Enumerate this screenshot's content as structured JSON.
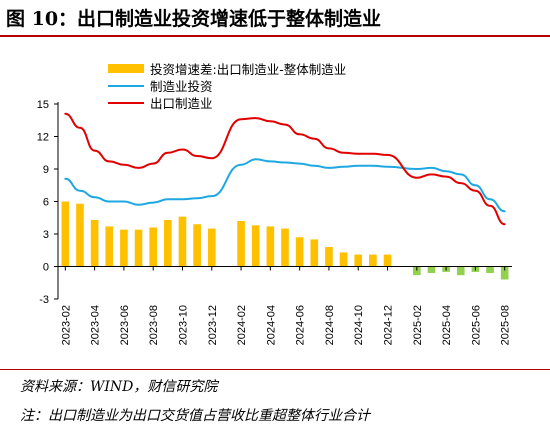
{
  "title": "图 10：出口制造业投资增速低于整体制造业",
  "source": "资料来源：WIND，财信研究院",
  "footnote": "注：出口制造业为出口交货值占营收比重超整体行业合计",
  "colors": {
    "bar_positive": "#ffc000",
    "bar_negative": "#92d050",
    "line_total": "#1ea7e1",
    "line_export": "#e00000",
    "rule": "#b30000"
  },
  "chart_data": {
    "type": "bar",
    "x": [
      "2023-02",
      "2023-03",
      "2023-04",
      "2023-05",
      "2023-06",
      "2023-07",
      "2023-08",
      "2023-09",
      "2023-10",
      "2023-11",
      "2023-12",
      "2024-01",
      "2024-02",
      "2024-03",
      "2024-04",
      "2024-05",
      "2024-06",
      "2024-07",
      "2024-08",
      "2024-09",
      "2024-10",
      "2024-11",
      "2024-12",
      "2025-01",
      "2025-02",
      "2025-03",
      "2025-04",
      "2025-05",
      "2025-06",
      "2025-07",
      "2025-08"
    ],
    "tick_labels": [
      "2023-02",
      "2023-04",
      "2023-06",
      "2023-08",
      "2023-10",
      "2023-12",
      "2024-02",
      "2024-04",
      "2024-06",
      "2024-08",
      "2024-10",
      "2024-12",
      "2025-02",
      "2025-04",
      "2025-06",
      "2025-08"
    ],
    "yticks": [
      -3,
      0,
      3,
      6,
      9,
      12,
      15
    ],
    "ylim": [
      -3,
      15
    ],
    "legend_position": "top-left",
    "grid": false,
    "series": [
      {
        "name": "投资增速差:出口制造业-整体制造业",
        "type": "bar",
        "values": [
          6.0,
          5.8,
          4.3,
          3.7,
          3.4,
          3.4,
          3.6,
          4.3,
          4.6,
          3.9,
          3.5,
          null,
          4.2,
          3.8,
          3.7,
          3.5,
          2.7,
          2.5,
          1.8,
          1.3,
          1.1,
          1.1,
          1.1,
          null,
          -0.8,
          -0.6,
          -0.5,
          -0.8,
          -0.5,
          -0.6,
          -1.2
        ]
      },
      {
        "name": "制造业投资",
        "type": "line",
        "values": [
          8.1,
          7.0,
          6.4,
          6.0,
          6.0,
          5.7,
          5.9,
          6.2,
          6.2,
          6.3,
          6.5,
          null,
          9.4,
          9.9,
          9.7,
          9.6,
          9.5,
          9.3,
          9.1,
          9.2,
          9.3,
          9.3,
          9.2,
          null,
          9.0,
          9.1,
          8.8,
          8.5,
          7.5,
          6.2,
          5.1
        ]
      },
      {
        "name": "出口制造业",
        "type": "line",
        "values": [
          14.1,
          12.8,
          10.7,
          9.7,
          9.4,
          9.1,
          9.5,
          10.5,
          10.8,
          10.2,
          10.0,
          null,
          13.6,
          13.7,
          13.4,
          13.1,
          12.2,
          11.8,
          10.9,
          10.5,
          10.4,
          10.4,
          10.3,
          null,
          8.2,
          8.5,
          8.3,
          7.7,
          7.0,
          5.6,
          3.9
        ]
      }
    ]
  }
}
